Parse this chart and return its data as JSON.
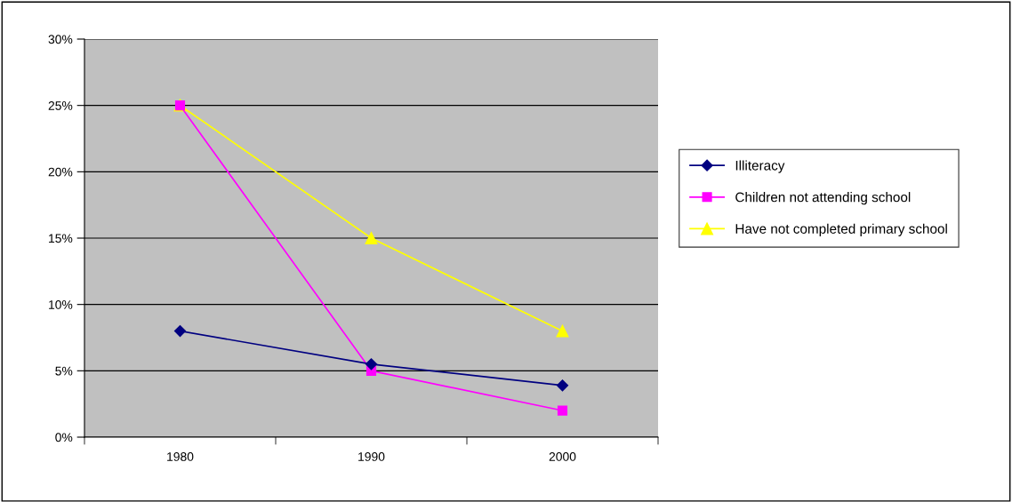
{
  "chart_data": {
    "type": "line",
    "categories": [
      "1980",
      "1990",
      "2000"
    ],
    "series": [
      {
        "name": "Illiteracy",
        "color": "#000080",
        "marker": "diamond",
        "values": [
          8,
          5.5,
          3.9
        ]
      },
      {
        "name": "Children not attending school",
        "color": "#ff00ff",
        "marker": "square",
        "values": [
          25,
          5,
          2
        ]
      },
      {
        "name": "Have not completed primary school",
        "color": "#ffff00",
        "marker": "triangle",
        "values": [
          25,
          15,
          8
        ]
      }
    ],
    "ylim": [
      0,
      30
    ],
    "yticks": [
      {
        "value": 0,
        "label": "0%"
      },
      {
        "value": 5,
        "label": "5%"
      },
      {
        "value": 10,
        "label": "10%"
      },
      {
        "value": 15,
        "label": "15%"
      },
      {
        "value": 20,
        "label": "20%"
      },
      {
        "value": 25,
        "label": "25%"
      },
      {
        "value": 30,
        "label": "30%"
      }
    ],
    "grid": "y",
    "legend": "right",
    "line_style": "solid"
  }
}
